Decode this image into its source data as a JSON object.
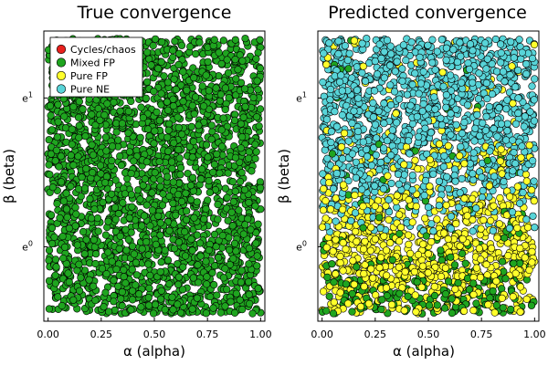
{
  "chart_data": [
    {
      "type": "scatter",
      "title": "True convergence",
      "xlabel": "α (alpha)",
      "ylabel": "β (beta)",
      "xlim": [
        -0.02,
        1.02
      ],
      "ylim": [
        -0.5,
        1.45
      ],
      "yscale": "log (natural), axis value = ln β",
      "xticks": [
        0.0,
        0.25,
        0.5,
        0.75,
        1.0
      ],
      "xtick_labels": [
        "0.00",
        "0.25",
        "0.50",
        "0.75",
        "1.00"
      ],
      "yticks": [
        0,
        1
      ],
      "ytick_labels": [
        {
          "base": "e",
          "exp": "0"
        },
        {
          "base": "e",
          "exp": "1"
        }
      ],
      "x_range": [
        0.0,
        1.0
      ],
      "ln_beta_range": [
        -0.45,
        1.4
      ],
      "grid": false,
      "legend": {
        "placement": "top-left",
        "entries": [
          "Cycles/chaos",
          "Mixed FP",
          "Pure FP",
          "Pure NE"
        ]
      },
      "series": [
        {
          "name": "Cycles/chaos",
          "color": "#e8211d",
          "share": 0.0
        },
        {
          "name": "Mixed FP",
          "color": "#1fa51f",
          "share": 1.0
        },
        {
          "name": "Pure FP",
          "color": "#ffff2b",
          "share": 0.0
        },
        {
          "name": "Pure NE",
          "color": "#58d4d8",
          "share": 0.0
        }
      ]
    },
    {
      "type": "scatter",
      "title": "Predicted convergence",
      "xlabel": "α (alpha)",
      "ylabel": "β (beta)",
      "xlim": [
        -0.02,
        1.02
      ],
      "ylim": [
        -0.5,
        1.45
      ],
      "yscale": "log (natural), axis value = ln β",
      "xticks": [
        0.0,
        0.25,
        0.5,
        0.75,
        1.0
      ],
      "xtick_labels": [
        "0.00",
        "0.25",
        "0.50",
        "0.75",
        "1.00"
      ],
      "yticks": [
        0,
        1
      ],
      "ytick_labels": [
        {
          "base": "e",
          "exp": "0"
        },
        {
          "base": "e",
          "exp": "1"
        }
      ],
      "x_range": [
        0.0,
        1.0
      ],
      "ln_beta_range": [
        -0.45,
        1.4
      ],
      "grid": false,
      "description_by_band": [
        {
          "ln_beta": [
            -0.45,
            -0.2
          ],
          "Mixed FP": 0.45,
          "Pure FP": 0.55,
          "Pure NE": 0.0
        },
        {
          "ln_beta": [
            -0.2,
            0.1
          ],
          "Mixed FP": 0.15,
          "Pure FP": 0.85,
          "Pure NE": 0.0
        },
        {
          "ln_beta": [
            0.1,
            0.35
          ],
          "Mixed FP": 0.05,
          "Pure FP": 0.65,
          "Pure NE": 0.3
        },
        {
          "ln_beta": [
            0.35,
            0.7
          ],
          "Mixed FP": 0.03,
          "Pure FP": 0.25,
          "Pure NE": 0.72
        },
        {
          "ln_beta": [
            0.7,
            1.4
          ],
          "Mixed FP": 0.02,
          "Pure FP": 0.06,
          "Pure NE": 0.92
        }
      ],
      "series": [
        {
          "name": "Mixed FP",
          "color": "#1fa51f"
        },
        {
          "name": "Pure FP",
          "color": "#ffff2b"
        },
        {
          "name": "Pure NE",
          "color": "#58d4d8"
        }
      ]
    }
  ]
}
